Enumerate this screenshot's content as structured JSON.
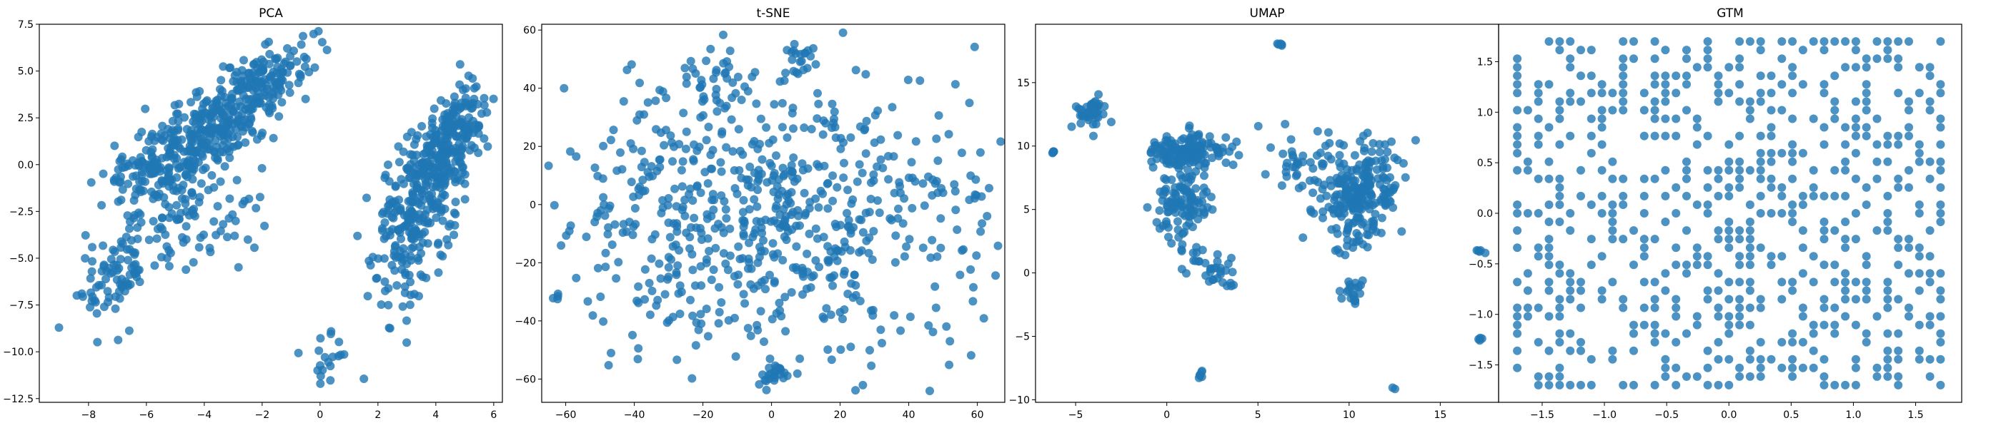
{
  "figure": {
    "point_color": "#1f77b4",
    "point_alpha": 0.8
  },
  "chart_data": [
    {
      "type": "scatter",
      "title": "PCA",
      "xlabel": "",
      "ylabel": "",
      "xlim": [
        -9.7,
        6.3
      ],
      "ylim": [
        -12.7,
        7.5
      ],
      "xticks": [
        -8,
        -6,
        -4,
        -2,
        0,
        2,
        4,
        6
      ],
      "yticks": [
        -12.5,
        -10.0,
        -7.5,
        -5.0,
        -2.5,
        0.0,
        2.5,
        5.0,
        7.5
      ],
      "xtick_labels": [
        "−8",
        "−6",
        "−4",
        "−2",
        "0",
        "2",
        "4",
        "6"
      ],
      "ytick_labels": [
        "−12.5",
        "−10.0",
        "−7.5",
        "−5.0",
        "−2.5",
        "0.0",
        "2.5",
        "5.0",
        "7.5"
      ],
      "grid": false,
      "clusters": [
        {
          "cx": -5.5,
          "cy": 0.0,
          "sx": 1.0,
          "sy": 1.3,
          "n": 180,
          "rho": 0.4
        },
        {
          "cx": -3.5,
          "cy": 2.0,
          "sx": 1.0,
          "sy": 1.4,
          "n": 220,
          "rho": 0.6
        },
        {
          "cx": -1.8,
          "cy": 4.6,
          "sx": 0.8,
          "sy": 1.0,
          "n": 120,
          "rho": 0.5
        },
        {
          "cx": -7.0,
          "cy": -5.8,
          "sx": 0.8,
          "sy": 1.5,
          "n": 90,
          "rho": 0.6
        },
        {
          "cx": -4.0,
          "cy": -3.0,
          "sx": 1.2,
          "sy": 1.5,
          "n": 60,
          "rho": 0.3
        },
        {
          "cx": 4.5,
          "cy": 1.2,
          "sx": 0.6,
          "sy": 1.6,
          "n": 260,
          "rho": 0.5
        },
        {
          "cx": 3.2,
          "cy": -3.2,
          "sx": 0.7,
          "sy": 2.2,
          "n": 220,
          "rho": 0.4
        },
        {
          "cx": 0.3,
          "cy": -10.3,
          "sx": 0.5,
          "sy": 0.9,
          "n": 20,
          "rho": 0.1
        }
      ]
    },
    {
      "type": "scatter",
      "title": "t-SNE",
      "xlabel": "",
      "ylabel": "",
      "xlim": [
        -67,
        68
      ],
      "ylim": [
        -68,
        62
      ],
      "xticks": [
        -60,
        -40,
        -20,
        0,
        20,
        40,
        60
      ],
      "yticks": [
        -60,
        -40,
        -20,
        0,
        20,
        40,
        60
      ],
      "xtick_labels": [
        "−60",
        "−40",
        "−20",
        "0",
        "20",
        "40",
        "60"
      ],
      "ytick_labels": [
        "−60",
        "−40",
        "−20",
        "0",
        "20",
        "40",
        "60"
      ],
      "grid": false,
      "clusters": [
        {
          "cx": 0,
          "cy": -5,
          "sx": 32,
          "sy": 24,
          "n": 700,
          "rho": 0.0
        },
        {
          "cx": -15,
          "cy": 42,
          "sx": 5,
          "sy": 5,
          "n": 30,
          "rho": 0.2
        },
        {
          "cx": 8,
          "cy": 50,
          "sx": 3,
          "sy": 3,
          "n": 20,
          "rho": 0.0
        },
        {
          "cx": 0,
          "cy": -58,
          "sx": 3,
          "sy": 2,
          "n": 25,
          "rho": 0.0
        }
      ]
    },
    {
      "type": "scatter",
      "title": "UMAP",
      "xlabel": "",
      "ylabel": "",
      "xlim": [
        -7.2,
        18.2
      ],
      "ylim": [
        -10.2,
        19.6
      ],
      "xticks": [
        -5,
        0,
        5,
        10,
        15
      ],
      "yticks": [
        -10,
        -5,
        0,
        5,
        10,
        15
      ],
      "xtick_labels": [
        "−5",
        "0",
        "5",
        "10",
        "15"
      ],
      "ytick_labels": [
        "−10",
        "−5",
        "0",
        "5",
        "10",
        "15"
      ],
      "grid": false,
      "clusters": [
        {
          "cx": -4.2,
          "cy": 12.5,
          "sx": 0.4,
          "sy": 0.6,
          "n": 40,
          "rho": 0.0
        },
        {
          "cx": 1.0,
          "cy": 9.5,
          "sx": 1.0,
          "sy": 0.7,
          "n": 150,
          "rho": 0.0
        },
        {
          "cx": 0.8,
          "cy": 5.5,
          "sx": 0.8,
          "sy": 1.6,
          "n": 110,
          "rho": 0.0
        },
        {
          "cx": 2.5,
          "cy": 0.0,
          "sx": 0.8,
          "sy": 0.9,
          "n": 35,
          "rho": -0.4
        },
        {
          "cx": 10.5,
          "cy": 6.5,
          "sx": 1.2,
          "sy": 2.0,
          "n": 240,
          "rho": 0.2
        },
        {
          "cx": 7.5,
          "cy": 9.0,
          "sx": 1.0,
          "sy": 1.3,
          "n": 40,
          "rho": 0.0
        },
        {
          "cx": 10.0,
          "cy": -1.5,
          "sx": 0.4,
          "sy": 0.5,
          "n": 20,
          "rho": 0.0
        },
        {
          "cx": -6.2,
          "cy": 9.5,
          "sx": 0.1,
          "sy": 0.1,
          "n": 5,
          "rho": 0.0
        },
        {
          "cx": 6.2,
          "cy": 18.0,
          "sx": 0.1,
          "sy": 0.1,
          "n": 5,
          "rho": 0.0
        },
        {
          "cx": 2.0,
          "cy": -8.0,
          "sx": 0.2,
          "sy": 0.3,
          "n": 6,
          "rho": 0.0
        },
        {
          "cx": 12.5,
          "cy": -9.0,
          "sx": 0.1,
          "sy": 0.1,
          "n": 2,
          "rho": 0.0
        },
        {
          "cx": 17.2,
          "cy": -5.3,
          "sx": 0.1,
          "sy": 0.1,
          "n": 4,
          "rho": 0.0
        },
        {
          "cx": 17.0,
          "cy": 1.7,
          "sx": 0.2,
          "sy": 0.1,
          "n": 5,
          "rho": 0.0
        }
      ]
    },
    {
      "type": "scatter",
      "title": "GTM",
      "xlabel": "",
      "ylabel": "",
      "xlim": [
        -1.85,
        1.87
      ],
      "ylim": [
        -1.87,
        1.87
      ],
      "xticks": [
        -1.5,
        -1.0,
        -0.5,
        0.0,
        0.5,
        1.0,
        1.5
      ],
      "yticks": [
        -1.5,
        -1.0,
        -0.5,
        0.0,
        0.5,
        1.0,
        1.5
      ],
      "xtick_labels": [
        "−1.5",
        "−1.0",
        "−0.5",
        "0.0",
        "0.5",
        "1.0",
        "1.5"
      ],
      "ytick_labels": [
        "−1.5",
        "−1.0",
        "−0.5",
        "0.0",
        "0.5",
        "1.0",
        "1.5"
      ],
      "grid": false,
      "lattice": {
        "min": -1.7,
        "max": 1.7,
        "step": 0.085,
        "fill": 0.38
      }
    }
  ]
}
